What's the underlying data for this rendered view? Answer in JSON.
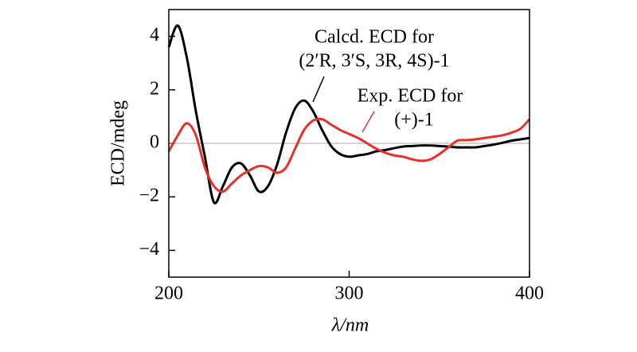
{
  "chart_data": {
    "type": "line",
    "x_label": "λ/nm",
    "y_label": "ECD/mdeg",
    "x": [
      200,
      205,
      210,
      215,
      220,
      225,
      230,
      235,
      240,
      245,
      250,
      255,
      260,
      265,
      270,
      275,
      280,
      285,
      290,
      295,
      300,
      305,
      310,
      315,
      320,
      325,
      330,
      335,
      340,
      345,
      350,
      355,
      360,
      365,
      370,
      375,
      380,
      385,
      390,
      395,
      400
    ],
    "series": [
      {
        "name": "Calcd. ECD for (2′R, 3′S, 3R, 4S)-1",
        "color": "#000000",
        "values": [
          3.6,
          4.4,
          3.2,
          1.2,
          -0.5,
          -2.2,
          -1.6,
          -0.9,
          -0.75,
          -1.2,
          -1.8,
          -1.6,
          -0.8,
          0.4,
          1.3,
          1.6,
          1.2,
          0.5,
          -0.1,
          -0.4,
          -0.5,
          -0.45,
          -0.4,
          -0.3,
          -0.25,
          -0.18,
          -0.12,
          -0.1,
          -0.08,
          -0.08,
          -0.1,
          -0.12,
          -0.15,
          -0.15,
          -0.15,
          -0.1,
          -0.05,
          0.02,
          0.1,
          0.15,
          0.2
        ]
      },
      {
        "name": "Exp. ECD for (+)-1",
        "color": "#e8302a",
        "values": [
          -0.3,
          0.3,
          0.75,
          0.3,
          -0.9,
          -1.6,
          -1.8,
          -1.5,
          -1.2,
          -1.0,
          -0.85,
          -0.9,
          -1.1,
          -0.9,
          -0.2,
          0.5,
          0.85,
          0.9,
          0.7,
          0.5,
          0.35,
          0.2,
          0.0,
          -0.2,
          -0.35,
          -0.45,
          -0.5,
          -0.6,
          -0.65,
          -0.6,
          -0.4,
          -0.15,
          0.1,
          0.12,
          0.15,
          0.2,
          0.25,
          0.3,
          0.4,
          0.55,
          0.9
        ]
      }
    ],
    "annotations": [
      "Calcd. ECD for",
      "(2′R, 3′S, 3R, 4S)-1",
      "Exp. ECD for",
      "(+)-1"
    ],
    "xlim": [
      200,
      400
    ],
    "xticks": [
      200,
      300,
      400
    ],
    "ylim": [
      -5,
      5
    ],
    "yticks": [
      {
        "value": -4,
        "label": "−4"
      },
      {
        "value": -2,
        "label": "−2"
      },
      0,
      2,
      4
    ],
    "zero_line": true,
    "grid": false
  }
}
